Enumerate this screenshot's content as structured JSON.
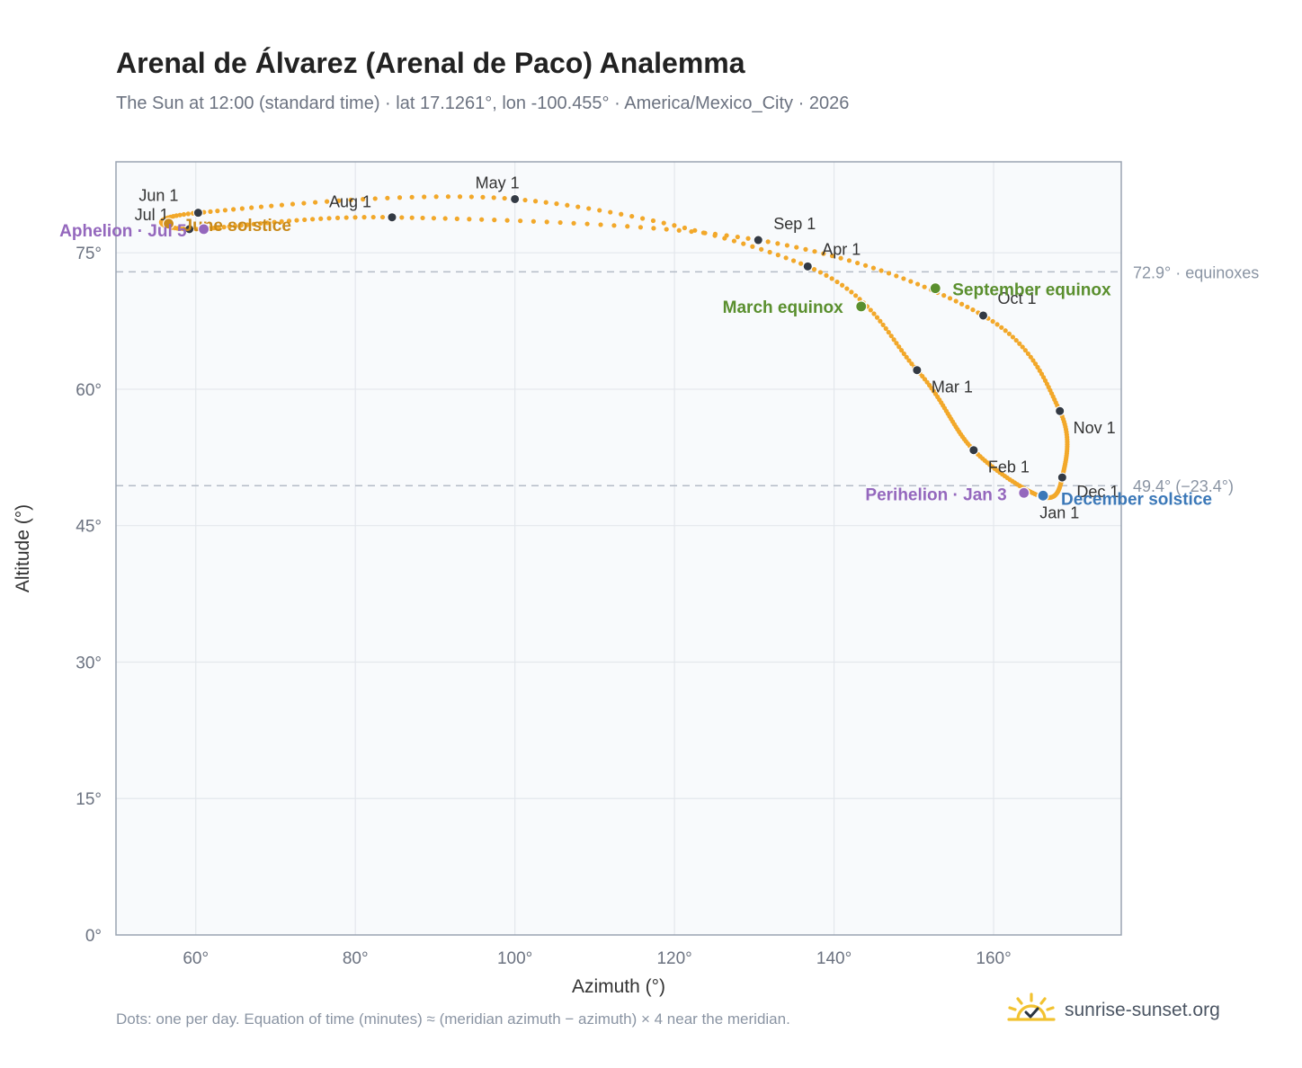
{
  "title": "Arenal de Álvarez (Arenal de Paco) Analemma",
  "subtitle": "The Sun at 12:00 (standard time) · lat 17.1261°, lon -100.455° · America/Mexico_City · 2026",
  "footnote": "Dots: one per day. Equation of time (minutes) ≈ (meridian azimuth − azimuth) × 4 near the meridian.",
  "brand": {
    "name": "sunrise-sunset.org",
    "icon": "sun-logo-icon"
  },
  "colors": {
    "path": "#f2a82a",
    "month_marker": "#333a44",
    "equinox": "#5a8f2e",
    "december_solstice": "#3b78b8",
    "june_solstice": "#c98a1a",
    "apsis": "#9467bd",
    "plot_background": "#f8fafc",
    "grid": "#e3e7ec",
    "frame": "#9aa4b2",
    "reference_line": "#b4bcc7"
  },
  "chart_data": {
    "type": "scatter",
    "title": "Arenal de Álvarez (Arenal de Paco) Analemma",
    "xlabel": "Azimuth (°)",
    "ylabel": "Altitude (°)",
    "xlim": [
      50,
      176
    ],
    "ylim": [
      0,
      85
    ],
    "xticks": [
      60,
      80,
      100,
      120,
      140,
      160
    ],
    "yticks": [
      0,
      15,
      30,
      45,
      60,
      75
    ],
    "x_tick_labels": [
      "60°",
      "80°",
      "100°",
      "120°",
      "140°",
      "160°"
    ],
    "y_tick_labels": [
      "0°",
      "15°",
      "30°",
      "45°",
      "60°",
      "75°"
    ],
    "grid": true,
    "reference_lines": [
      {
        "altitude": 72.9,
        "label": "72.9° · equinoxes"
      },
      {
        "altitude": 49.4,
        "label": "49.4° (−23.4°)"
      }
    ],
    "months": [
      {
        "label": "Jan 1",
        "azimuth": 166.0,
        "altitude": 48.2
      },
      {
        "label": "Feb 1",
        "azimuth": 157.5,
        "altitude": 53.3
      },
      {
        "label": "Mar 1",
        "azimuth": 150.4,
        "altitude": 62.1
      },
      {
        "label": "Apr 1",
        "azimuth": 136.7,
        "altitude": 73.5
      },
      {
        "label": "May 1",
        "azimuth": 100.0,
        "altitude": 80.9
      },
      {
        "label": "Jun 1",
        "azimuth": 60.3,
        "altitude": 79.4
      },
      {
        "label": "Jul 1",
        "azimuth": 59.2,
        "altitude": 77.6
      },
      {
        "label": "Aug 1",
        "azimuth": 84.6,
        "altitude": 78.9
      },
      {
        "label": "Sep 1",
        "azimuth": 130.5,
        "altitude": 76.4
      },
      {
        "label": "Oct 1",
        "azimuth": 158.7,
        "altitude": 68.1
      },
      {
        "label": "Nov 1",
        "azimuth": 168.3,
        "altitude": 57.6
      },
      {
        "label": "Dec 1",
        "azimuth": 168.6,
        "altitude": 50.3
      }
    ],
    "events": [
      {
        "label": "March equinox",
        "azimuth": 143.4,
        "altitude": 69.1,
        "color": "#5a8f2e"
      },
      {
        "label": "September equinox",
        "azimuth": 152.7,
        "altitude": 71.1,
        "color": "#5a8f2e"
      },
      {
        "label": "December solstice",
        "azimuth": 166.2,
        "altitude": 48.3,
        "color": "#3b78b8"
      },
      {
        "label": "June solstice",
        "azimuth": 56.6,
        "altitude": 78.2,
        "color": "#c98a1a"
      },
      {
        "label": "Perihelion · Jan 3",
        "azimuth": 163.8,
        "altitude": 48.6,
        "color": "#9467bd"
      },
      {
        "label": "Aphelion · Jul 5",
        "azimuth": 61.0,
        "altitude": 77.6,
        "color": "#9467bd"
      }
    ]
  }
}
